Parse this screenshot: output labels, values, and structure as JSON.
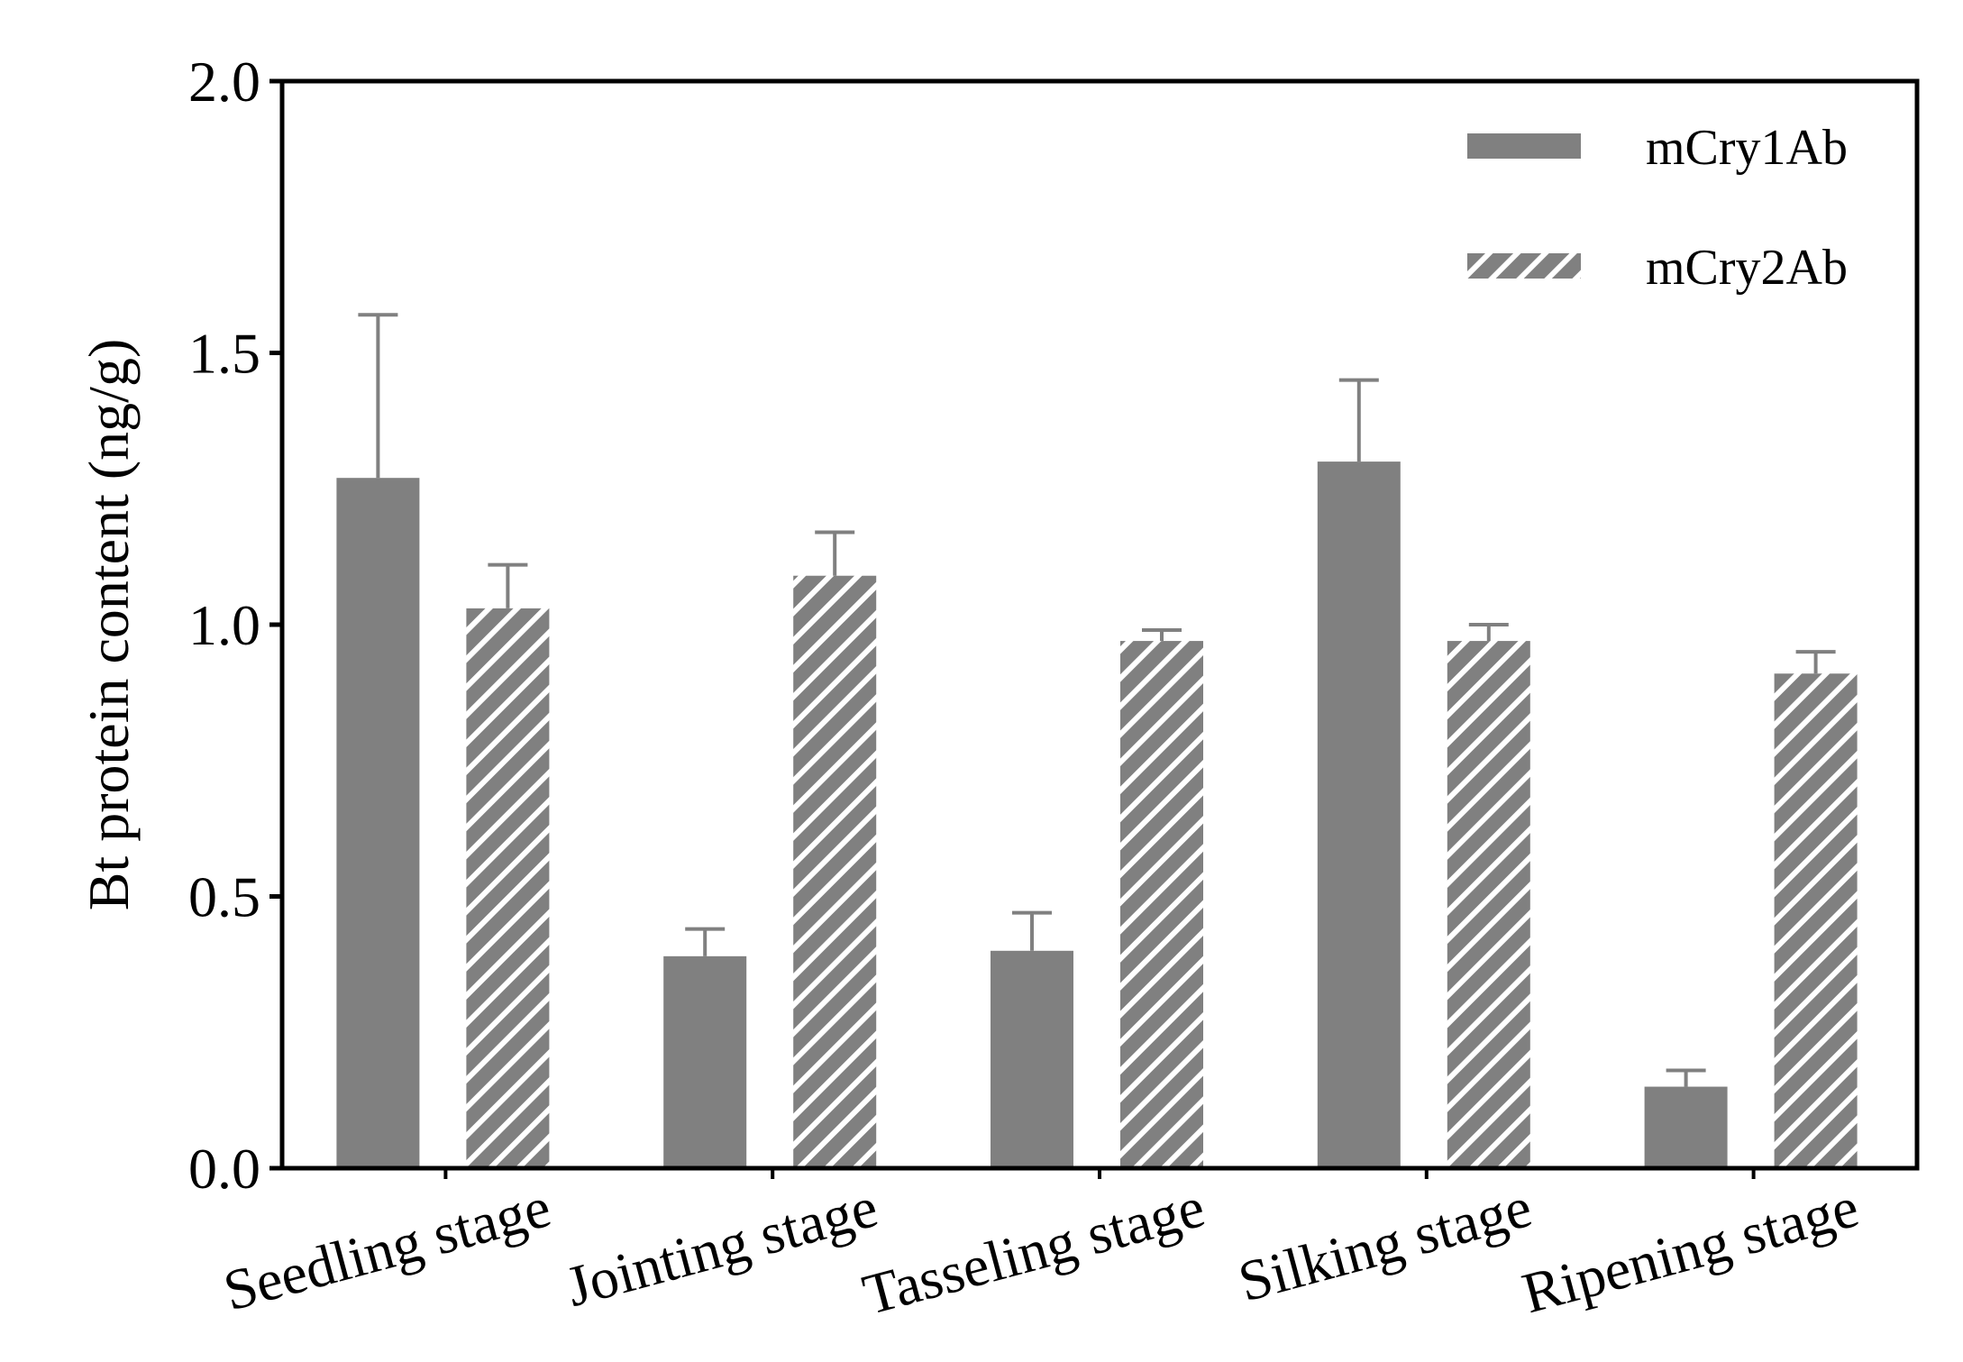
{
  "chart_data": {
    "type": "bar",
    "title": "",
    "xlabel": "",
    "ylabel": "Bt protein content (ng/g)",
    "ylim": [
      0,
      2.0
    ],
    "yticks": [
      "0.0",
      "0.5",
      "1.0",
      "1.5",
      "2.0"
    ],
    "ytick_values": [
      0,
      0.5,
      1.0,
      1.5,
      2.0
    ],
    "categories": [
      "Seedling stage",
      "Jointing stage",
      "Tasseling stage",
      "Silking stage",
      "Ripening stage"
    ],
    "series": [
      {
        "name": "mCry1Ab",
        "fill": "solid",
        "values": [
          1.27,
          0.39,
          0.4,
          1.3,
          0.15
        ],
        "errors": [
          0.3,
          0.05,
          0.07,
          0.15,
          0.03
        ]
      },
      {
        "name": "mCry2Ab",
        "fill": "hatched",
        "values": [
          1.03,
          1.09,
          0.97,
          0.97,
          0.91
        ],
        "errors": [
          0.08,
          0.08,
          0.02,
          0.03,
          0.04
        ]
      }
    ],
    "legend_position": "top-right",
    "grid": false
  },
  "colors": {
    "bar": "#808080",
    "hatch_line": "#ffffff",
    "axis": "#000000"
  }
}
